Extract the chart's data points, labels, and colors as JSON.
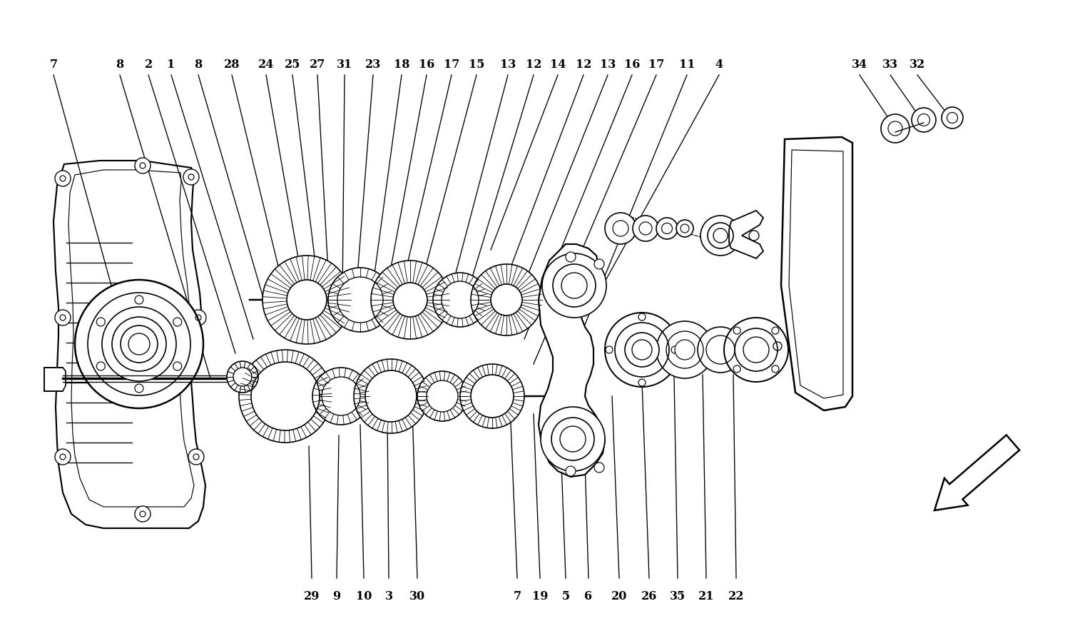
{
  "bg": "#ffffff",
  "lc": "#000000",
  "fig_w": 15.0,
  "fig_h": 8.91,
  "top_labels": [
    [
      "7",
      0.05
    ],
    [
      "8",
      0.112
    ],
    [
      "2",
      0.14
    ],
    [
      "1",
      0.163
    ],
    [
      "8",
      0.19
    ],
    [
      "28",
      0.22
    ],
    [
      "24",
      0.252
    ],
    [
      "25",
      0.278
    ],
    [
      "27",
      0.303
    ],
    [
      "31",
      0.33
    ],
    [
      "23",
      0.358
    ],
    [
      "18",
      0.386
    ],
    [
      "16",
      0.412
    ],
    [
      "17",
      0.437
    ],
    [
      "15",
      0.463
    ],
    [
      "13",
      0.492
    ],
    [
      "12",
      0.516
    ],
    [
      "14",
      0.542
    ],
    [
      "12",
      0.568
    ],
    [
      "13",
      0.592
    ],
    [
      "16",
      0.617
    ],
    [
      "17",
      0.641
    ],
    [
      "11",
      0.673
    ],
    [
      "4",
      0.706
    ],
    [
      "34",
      0.82
    ],
    [
      "33",
      0.85
    ],
    [
      "32",
      0.879
    ]
  ],
  "bottom_labels": [
    [
      "29",
      0.298
    ],
    [
      "9",
      0.323
    ],
    [
      "10",
      0.35
    ],
    [
      "3",
      0.373
    ],
    [
      "30",
      0.401
    ],
    [
      "7",
      0.498
    ],
    [
      "19",
      0.522
    ],
    [
      "5",
      0.546
    ],
    [
      "6",
      0.57
    ],
    [
      "20",
      0.601
    ],
    [
      "26",
      0.633
    ],
    [
      "35",
      0.664
    ],
    [
      "21",
      0.695
    ],
    [
      "22",
      0.724
    ]
  ]
}
